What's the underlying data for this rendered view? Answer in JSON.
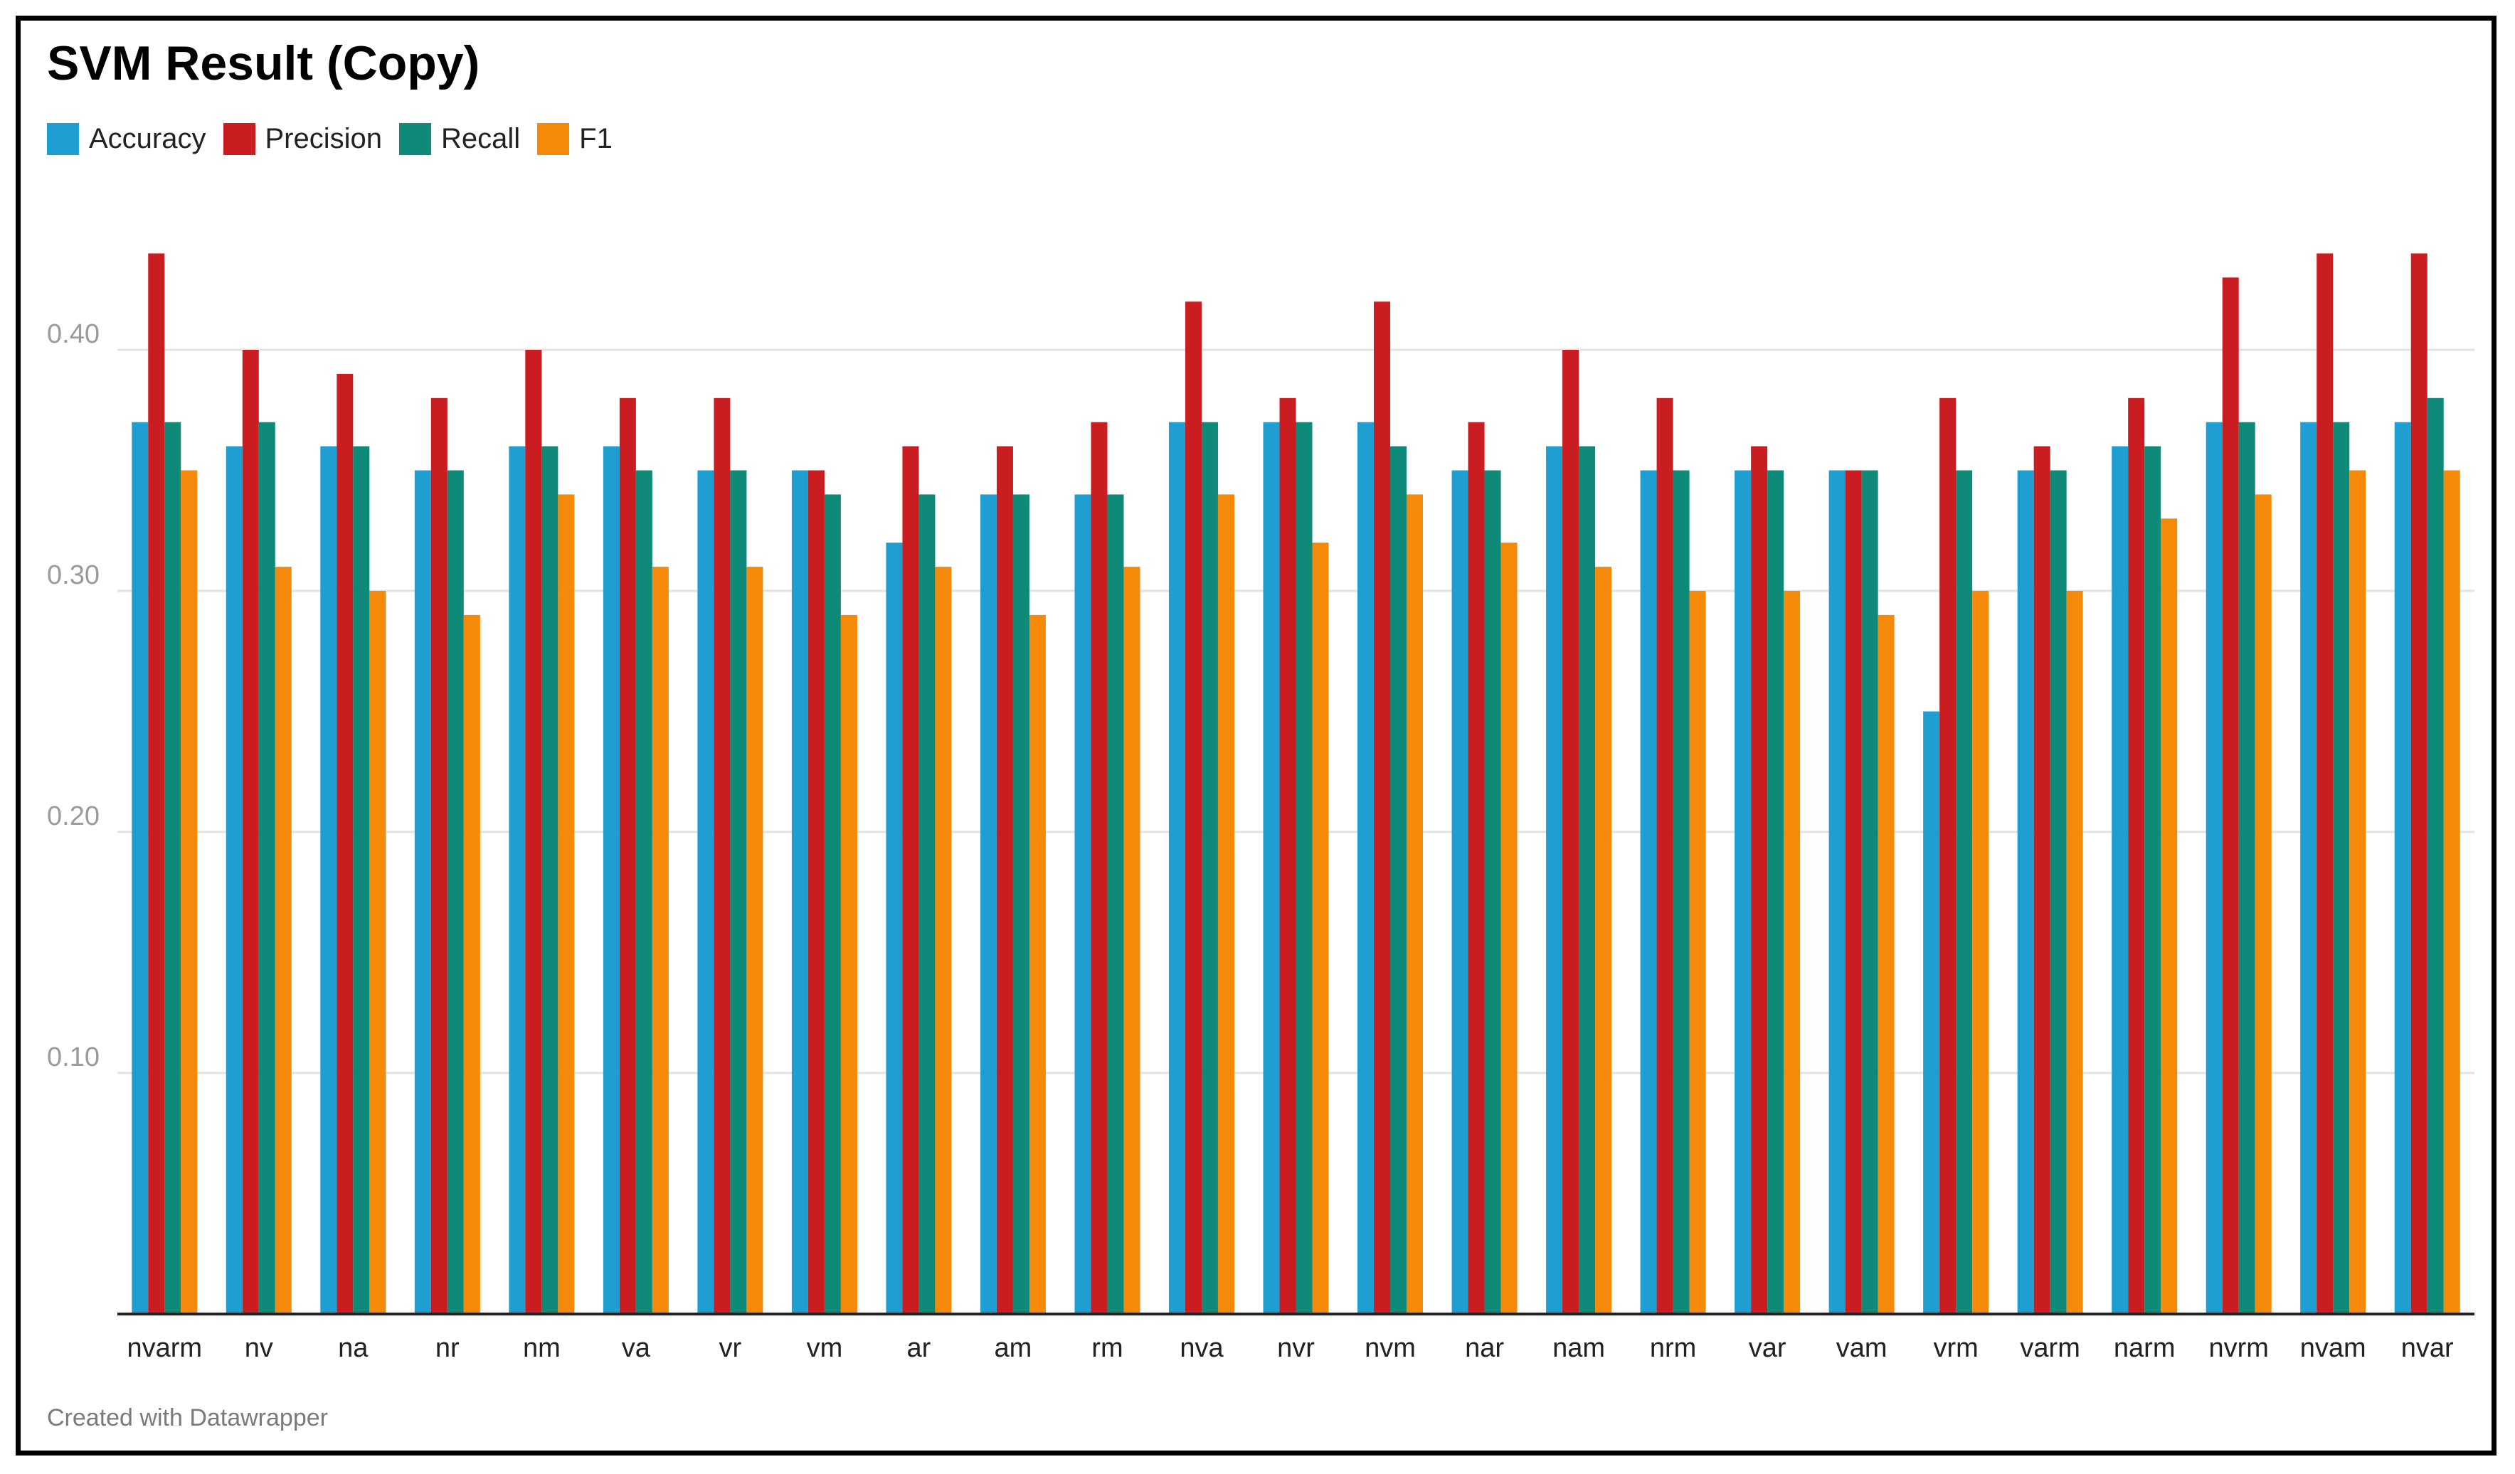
{
  "chart_data": {
    "type": "bar",
    "title": "SVM Result (Copy)",
    "xlabel": "",
    "ylabel": "",
    "ylim": [
      0,
      0.45
    ],
    "yticks": [
      "0.10",
      "0.20",
      "0.30",
      "0.40"
    ],
    "ytick_values": [
      0.1,
      0.2,
      0.3,
      0.4
    ],
    "grid": true,
    "legend_position": "top-left",
    "categories": [
      "nvarm",
      "nv",
      "na",
      "nr",
      "nm",
      "va",
      "vr",
      "vm",
      "ar",
      "am",
      "rm",
      "nva",
      "nvr",
      "nvm",
      "nar",
      "nam",
      "nrm",
      "var",
      "vam",
      "vrm",
      "varm",
      "narm",
      "nvrm",
      "nvam",
      "nvar"
    ],
    "series": [
      {
        "name": "Accuracy",
        "color": "#1f9fd1",
        "values": [
          0.37,
          0.36,
          0.36,
          0.35,
          0.36,
          0.36,
          0.35,
          0.35,
          0.32,
          0.34,
          0.34,
          0.37,
          0.37,
          0.37,
          0.35,
          0.36,
          0.35,
          0.35,
          0.35,
          0.25,
          0.35,
          0.36,
          0.37,
          0.37,
          0.37
        ]
      },
      {
        "name": "Precision",
        "color": "#c91d22",
        "values": [
          0.44,
          0.4,
          0.39,
          0.38,
          0.4,
          0.38,
          0.38,
          0.35,
          0.36,
          0.36,
          0.37,
          0.42,
          0.38,
          0.42,
          0.37,
          0.4,
          0.38,
          0.36,
          0.35,
          0.38,
          0.36,
          0.38,
          0.43,
          0.44,
          0.44
        ]
      },
      {
        "name": "Recall",
        "color": "#108a78",
        "values": [
          0.37,
          0.37,
          0.36,
          0.35,
          0.36,
          0.35,
          0.35,
          0.34,
          0.34,
          0.34,
          0.34,
          0.37,
          0.37,
          0.36,
          0.35,
          0.36,
          0.35,
          0.35,
          0.35,
          0.35,
          0.35,
          0.36,
          0.37,
          0.37,
          0.38
        ]
      },
      {
        "name": "F1",
        "color": "#f5890a",
        "values": [
          0.35,
          0.31,
          0.3,
          0.29,
          0.34,
          0.31,
          0.31,
          0.29,
          0.31,
          0.29,
          0.31,
          0.34,
          0.32,
          0.34,
          0.32,
          0.31,
          0.3,
          0.3,
          0.29,
          0.3,
          0.3,
          0.33,
          0.34,
          0.35,
          0.35
        ]
      }
    ],
    "footer": "Created with Datawrapper"
  }
}
